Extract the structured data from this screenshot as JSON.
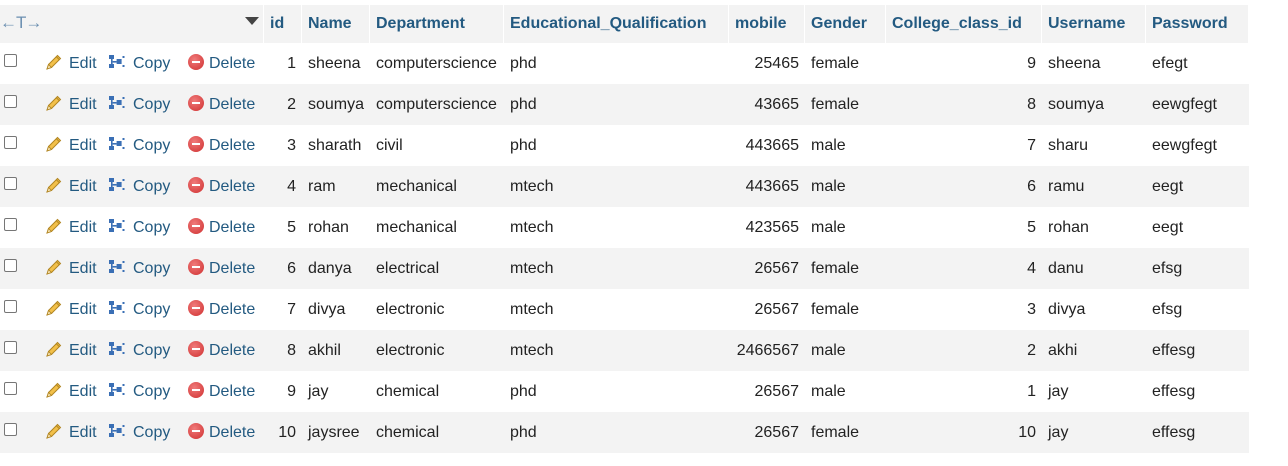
{
  "header": {
    "nav_arrows": "←T→",
    "columns": [
      "id",
      "Name",
      "Department",
      "Educational_Qualification",
      "mobile",
      "Gender",
      "College_class_id",
      "Username",
      "Password"
    ]
  },
  "actions": {
    "edit": "Edit",
    "copy": "Copy",
    "delete": "Delete"
  },
  "icons": {
    "edit": "pencil-icon",
    "copy": "copy-icon",
    "delete": "delete-icon"
  },
  "colors": {
    "link": "#235a81",
    "row_even": "#f3f3f3",
    "row_odd": "#ffffff",
    "delete_icon": "#cf3030"
  },
  "rows": [
    {
      "id": "1",
      "name": "sheena",
      "department": "computerscience",
      "qualification": "phd",
      "mobile": "25465",
      "gender": "female",
      "college_class_id": "9",
      "username": "sheena",
      "password": "efegt"
    },
    {
      "id": "2",
      "name": "soumya",
      "department": "computerscience",
      "qualification": "phd",
      "mobile": "43665",
      "gender": "female",
      "college_class_id": "8",
      "username": "soumya",
      "password": "eewgfegt"
    },
    {
      "id": "3",
      "name": "sharath",
      "department": "civil",
      "qualification": "phd",
      "mobile": "443665",
      "gender": "male",
      "college_class_id": "7",
      "username": "sharu",
      "password": "eewgfegt"
    },
    {
      "id": "4",
      "name": "ram",
      "department": "mechanical",
      "qualification": "mtech",
      "mobile": "443665",
      "gender": "male",
      "college_class_id": "6",
      "username": "ramu",
      "password": "eegt"
    },
    {
      "id": "5",
      "name": "rohan",
      "department": "mechanical",
      "qualification": "mtech",
      "mobile": "423565",
      "gender": "male",
      "college_class_id": "5",
      "username": "rohan",
      "password": "eegt"
    },
    {
      "id": "6",
      "name": "danya",
      "department": "electrical",
      "qualification": "mtech",
      "mobile": "26567",
      "gender": "female",
      "college_class_id": "4",
      "username": "danu",
      "password": "efsg"
    },
    {
      "id": "7",
      "name": "divya",
      "department": "electronic",
      "qualification": "mtech",
      "mobile": "26567",
      "gender": "female",
      "college_class_id": "3",
      "username": "divya",
      "password": "efsg"
    },
    {
      "id": "8",
      "name": "akhil",
      "department": "electronic",
      "qualification": "mtech",
      "mobile": "2466567",
      "gender": "male",
      "college_class_id": "2",
      "username": "akhi",
      "password": "effesg"
    },
    {
      "id": "9",
      "name": "jay",
      "department": "chemical",
      "qualification": "phd",
      "mobile": "26567",
      "gender": "male",
      "college_class_id": "1",
      "username": "jay",
      "password": "effesg"
    },
    {
      "id": "10",
      "name": "jaysree",
      "department": "chemical",
      "qualification": "phd",
      "mobile": "26567",
      "gender": "female",
      "college_class_id": "10",
      "username": "jay",
      "password": "effesg"
    }
  ]
}
